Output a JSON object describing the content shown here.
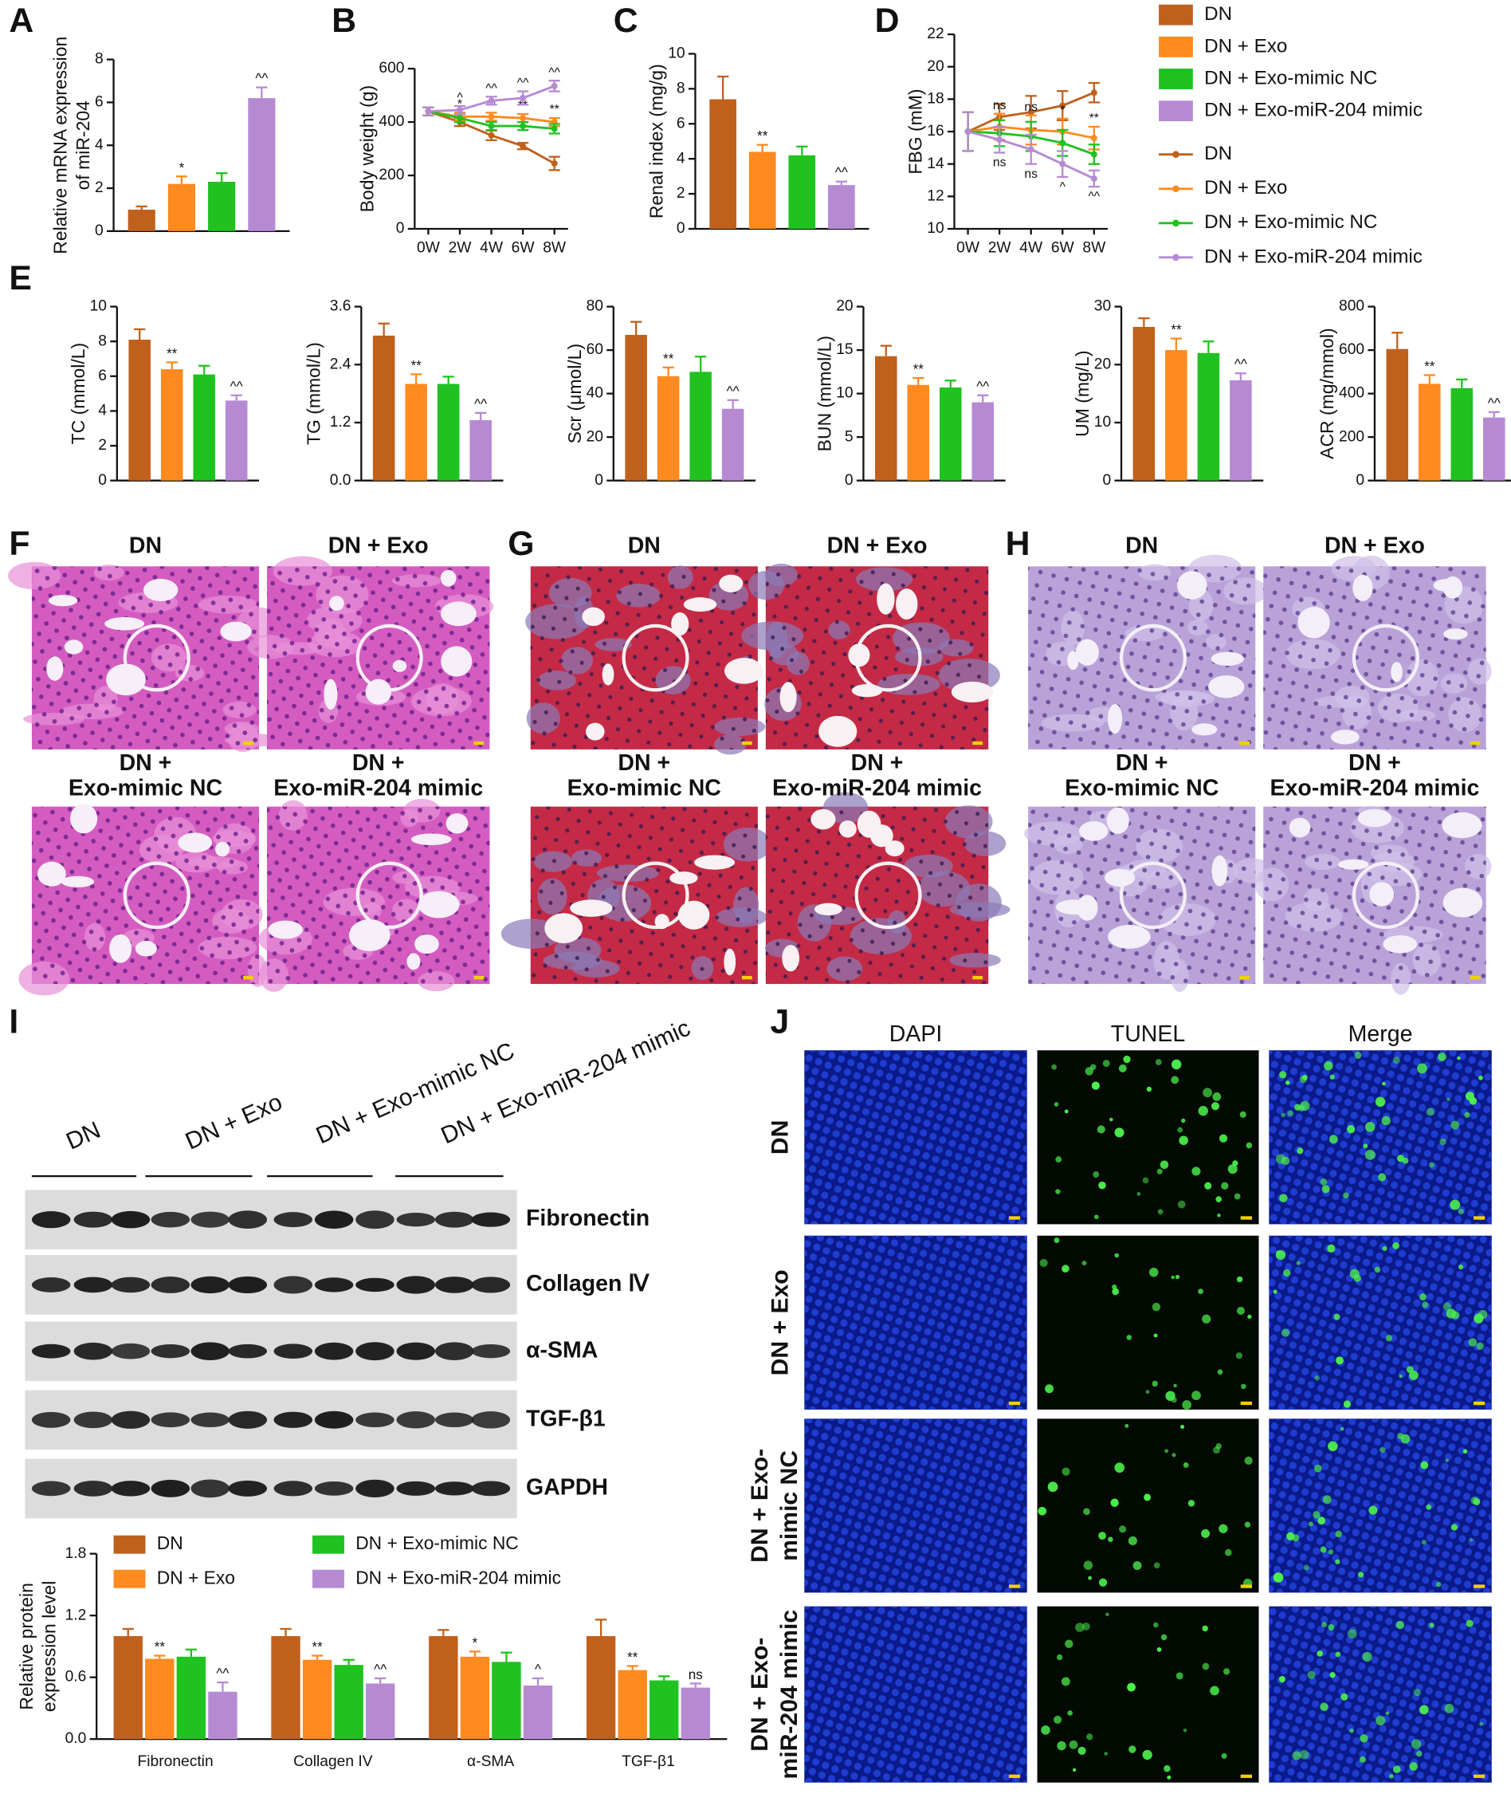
{
  "panel_letters": [
    "A",
    "B",
    "C",
    "D",
    "E",
    "F",
    "G",
    "H",
    "I",
    "J"
  ],
  "chart_data": [
    {
      "type": "bar",
      "ylabel": [
        "Relative mRNA expression",
        "of miR-204"
      ],
      "ylim": [
        0,
        8
      ],
      "yticks": [
        0,
        2,
        4,
        6,
        8
      ],
      "series": [
        {
          "name": "DN",
          "color": "#c0601d",
          "values": [
            1.0
          ],
          "errors": [
            0.15
          ],
          "annotations": [
            null
          ]
        },
        {
          "name": "DN + Exo",
          "color": "#ff8a1f",
          "values": [
            2.2
          ],
          "errors": [
            0.35
          ],
          "annotations": [
            "*"
          ]
        },
        {
          "name": "DN + Exo-mimic NC",
          "color": "#1fc21f",
          "values": [
            2.3
          ],
          "errors": [
            0.4
          ],
          "annotations": [
            null
          ]
        },
        {
          "name": "DN + Exo-miR-204 mimic",
          "color": "#b68ad3",
          "values": [
            6.2
          ],
          "errors": [
            0.5
          ],
          "annotations": [
            "^^"
          ]
        }
      ]
    },
    {
      "type": "line",
      "ylabel": [
        "Body weight (g)"
      ],
      "ylim": [
        0,
        600
      ],
      "yticks": [
        0,
        200,
        400,
        600
      ],
      "categories": [
        "0W",
        "2W",
        "4W",
        "6W",
        "8W"
      ],
      "series": [
        {
          "name": "DN",
          "color": "#c0601d",
          "values": [
            440,
            400,
            350,
            310,
            245
          ],
          "errors": [
            15,
            15,
            18,
            12,
            25
          ],
          "annotations": [
            null,
            null,
            null,
            null,
            null
          ]
        },
        {
          "name": "DN + Exo",
          "color": "#ff8a1f",
          "values": [
            440,
            420,
            420,
            415,
            400
          ],
          "errors": [
            15,
            15,
            15,
            15,
            15
          ],
          "annotations": [
            null,
            "*",
            "**",
            "**",
            "**"
          ]
        },
        {
          "name": "DN + Exo-mimic NC",
          "color": "#1fc21f",
          "values": [
            440,
            415,
            385,
            385,
            375
          ],
          "errors": [
            15,
            15,
            15,
            15,
            18
          ],
          "annotations": [
            null,
            null,
            null,
            null,
            null
          ]
        },
        {
          "name": "DN + Exo-miR-204 mimic",
          "color": "#b68ad3",
          "values": [
            440,
            445,
            480,
            490,
            535
          ],
          "errors": [
            15,
            15,
            15,
            25,
            20
          ],
          "annotations": [
            null,
            "^",
            "^^",
            "^^",
            "^^"
          ]
        }
      ]
    },
    {
      "type": "bar",
      "ylabel": [
        "Renal index (mg/g)"
      ],
      "ylim": [
        0,
        10
      ],
      "yticks": [
        0,
        2,
        4,
        6,
        8,
        10
      ],
      "series": [
        {
          "name": "DN",
          "color": "#c0601d",
          "values": [
            7.4
          ],
          "errors": [
            1.3
          ],
          "annotations": [
            null
          ]
        },
        {
          "name": "DN + Exo",
          "color": "#ff8a1f",
          "values": [
            4.4
          ],
          "errors": [
            0.4
          ],
          "annotations": [
            "**"
          ]
        },
        {
          "name": "DN + Exo-mimic NC",
          "color": "#1fc21f",
          "values": [
            4.2
          ],
          "errors": [
            0.5
          ],
          "annotations": [
            null
          ]
        },
        {
          "name": "DN + Exo-miR-204 mimic",
          "color": "#b68ad3",
          "values": [
            2.5
          ],
          "errors": [
            0.2
          ],
          "annotations": [
            "^^"
          ]
        }
      ]
    },
    {
      "type": "line",
      "ylabel": [
        "FBG (mM)"
      ],
      "ylim": [
        10,
        22
      ],
      "yticks": [
        10,
        12,
        14,
        16,
        18,
        20,
        22
      ],
      "categories": [
        "0W",
        "2W",
        "4W",
        "6W",
        "8W"
      ],
      "series": [
        {
          "name": "DN",
          "color": "#c0601d",
          "values": [
            16.0,
            16.9,
            17.2,
            17.6,
            18.4
          ],
          "errors": [
            1.2,
            0.8,
            1.0,
            0.9,
            0.6
          ],
          "annotations": [
            null,
            null,
            null,
            null,
            null
          ]
        },
        {
          "name": "DN + Exo",
          "color": "#ff8a1f",
          "values": [
            16.0,
            16.3,
            16.1,
            16.0,
            15.6
          ],
          "errors": [
            1.2,
            0.8,
            0.9,
            0.8,
            0.7
          ],
          "annotations": [
            null,
            "ns",
            "ns",
            "*",
            "**"
          ]
        },
        {
          "name": "DN + Exo-mimic NC",
          "color": "#1fc21f",
          "values": [
            16.0,
            15.9,
            15.7,
            15.3,
            14.6
          ],
          "errors": [
            1.2,
            0.8,
            0.9,
            0.8,
            0.6
          ],
          "annotations": [
            null,
            null,
            null,
            null,
            null
          ]
        },
        {
          "name": "DN + Exo-miR-204 mimic",
          "color": "#b68ad3",
          "values": [
            16.0,
            15.5,
            14.9,
            14.0,
            13.1
          ],
          "errors": [
            1.2,
            0.8,
            0.9,
            0.8,
            0.5
          ],
          "annotations": [
            null,
            "ns",
            "ns",
            "^",
            "^^"
          ]
        }
      ]
    },
    {
      "type": "bar",
      "ylabel": [
        "TC (mmol/L)"
      ],
      "ylim": [
        0,
        10
      ],
      "yticks": [
        0,
        2,
        4,
        6,
        8,
        10
      ],
      "series": [
        {
          "name": "DN",
          "color": "#c0601d",
          "values": [
            8.1
          ],
          "errors": [
            0.6
          ],
          "annotations": [
            null
          ]
        },
        {
          "name": "DN + Exo",
          "color": "#ff8a1f",
          "values": [
            6.4
          ],
          "errors": [
            0.4
          ],
          "annotations": [
            "**"
          ]
        },
        {
          "name": "DN + Exo-mimic NC",
          "color": "#1fc21f",
          "values": [
            6.1
          ],
          "errors": [
            0.5
          ],
          "annotations": [
            null
          ]
        },
        {
          "name": "DN + Exo-miR-204 mimic",
          "color": "#b68ad3",
          "values": [
            4.6
          ],
          "errors": [
            0.3
          ],
          "annotations": [
            "^^"
          ]
        }
      ]
    },
    {
      "type": "bar",
      "ylabel": [
        "TG (mmol/L)"
      ],
      "ylim": [
        0,
        3.6
      ],
      "yticks": [
        {
          "value": 0,
          "label": "0.0"
        },
        1.2,
        2.4,
        3.6
      ],
      "series": [
        {
          "name": "DN",
          "color": "#c0601d",
          "values": [
            3.0
          ],
          "errors": [
            0.25
          ],
          "annotations": [
            null
          ]
        },
        {
          "name": "DN + Exo",
          "color": "#ff8a1f",
          "values": [
            2.0
          ],
          "errors": [
            0.2
          ],
          "annotations": [
            "**"
          ]
        },
        {
          "name": "DN + Exo-mimic NC",
          "color": "#1fc21f",
          "values": [
            2.0
          ],
          "errors": [
            0.15
          ],
          "annotations": [
            null
          ]
        },
        {
          "name": "DN + Exo-miR-204 mimic",
          "color": "#b68ad3",
          "values": [
            1.25
          ],
          "errors": [
            0.15
          ],
          "annotations": [
            "^^"
          ]
        }
      ]
    },
    {
      "type": "bar",
      "ylabel": [
        "Scr (μmol/L)"
      ],
      "ylim": [
        0,
        80
      ],
      "yticks": [
        0,
        20,
        40,
        60,
        80
      ],
      "series": [
        {
          "name": "DN",
          "color": "#c0601d",
          "values": [
            67
          ],
          "errors": [
            6
          ],
          "annotations": [
            null
          ]
        },
        {
          "name": "DN + Exo",
          "color": "#ff8a1f",
          "values": [
            48
          ],
          "errors": [
            4
          ],
          "annotations": [
            "**"
          ]
        },
        {
          "name": "DN + Exo-mimic NC",
          "color": "#1fc21f",
          "values": [
            50
          ],
          "errors": [
            7
          ],
          "annotations": [
            null
          ]
        },
        {
          "name": "DN + Exo-miR-204 mimic",
          "color": "#b68ad3",
          "values": [
            33
          ],
          "errors": [
            4
          ],
          "annotations": [
            "^^"
          ]
        }
      ]
    },
    {
      "type": "bar",
      "ylabel": [
        "BUN (mmol/L)"
      ],
      "ylim": [
        0,
        20
      ],
      "yticks": [
        0,
        5,
        10,
        15,
        20
      ],
      "series": [
        {
          "name": "DN",
          "color": "#c0601d",
          "values": [
            14.3
          ],
          "errors": [
            1.2
          ],
          "annotations": [
            null
          ]
        },
        {
          "name": "DN + Exo",
          "color": "#ff8a1f",
          "values": [
            11
          ],
          "errors": [
            0.8
          ],
          "annotations": [
            "**"
          ]
        },
        {
          "name": "DN + Exo-mimic NC",
          "color": "#1fc21f",
          "values": [
            10.7
          ],
          "errors": [
            0.8
          ],
          "annotations": [
            null
          ]
        },
        {
          "name": "DN + Exo-miR-204 mimic",
          "color": "#b68ad3",
          "values": [
            9
          ],
          "errors": [
            0.8
          ],
          "annotations": [
            "^^"
          ]
        }
      ]
    },
    {
      "type": "bar",
      "ylabel": [
        "UM (mg/L)"
      ],
      "ylim": [
        0,
        30
      ],
      "yticks": [
        0,
        10,
        20,
        30
      ],
      "series": [
        {
          "name": "DN",
          "color": "#c0601d",
          "values": [
            26.5
          ],
          "errors": [
            1.5
          ],
          "annotations": [
            null
          ]
        },
        {
          "name": "DN + Exo",
          "color": "#ff8a1f",
          "values": [
            22.5
          ],
          "errors": [
            2
          ],
          "annotations": [
            "**"
          ]
        },
        {
          "name": "DN + Exo-mimic NC",
          "color": "#1fc21f",
          "values": [
            22
          ],
          "errors": [
            2
          ],
          "annotations": [
            null
          ]
        },
        {
          "name": "DN + Exo-miR-204 mimic",
          "color": "#b68ad3",
          "values": [
            17.3
          ],
          "errors": [
            1.2
          ],
          "annotations": [
            "^^"
          ]
        }
      ]
    },
    {
      "type": "bar",
      "ylabel": [
        "ACR (mg/mmol)"
      ],
      "ylim": [
        0,
        800
      ],
      "yticks": [
        0,
        200,
        400,
        600,
        800
      ],
      "series": [
        {
          "name": "DN",
          "color": "#c0601d",
          "values": [
            605
          ],
          "errors": [
            75
          ],
          "annotations": [
            null
          ]
        },
        {
          "name": "DN + Exo",
          "color": "#ff8a1f",
          "values": [
            445
          ],
          "errors": [
            40
          ],
          "annotations": [
            "**"
          ]
        },
        {
          "name": "DN + Exo-mimic NC",
          "color": "#1fc21f",
          "values": [
            425
          ],
          "errors": [
            40
          ],
          "annotations": [
            null
          ]
        },
        {
          "name": "DN + Exo-miR-204 mimic",
          "color": "#b68ad3",
          "values": [
            290
          ],
          "errors": [
            25
          ],
          "annotations": [
            "^^"
          ]
        }
      ]
    },
    {
      "type": "bar",
      "ylabel": [
        "Relative protein",
        "expression level"
      ],
      "ylim": [
        0,
        1.8
      ],
      "yticks": [
        {
          "value": 0,
          "label": "0.0"
        },
        0.6,
        1.2,
        1.8
      ],
      "categories": [
        "Fibronectin",
        "Collagen IV",
        "α-SMA",
        "TGF-β1"
      ],
      "series": [
        {
          "name": "DN",
          "color": "#c0601d",
          "values": [
            1.0,
            1.0,
            1.0,
            1.0
          ],
          "errors": [
            0.07,
            0.07,
            0.06,
            0.16
          ],
          "annotations": [
            null,
            null,
            null,
            null
          ]
        },
        {
          "name": "DN + Exo",
          "color": "#ff8a1f",
          "values": [
            0.78,
            0.77,
            0.8,
            0.67
          ],
          "errors": [
            0.03,
            0.04,
            0.05,
            0.04
          ],
          "annotations": [
            "**",
            "**",
            "*",
            "**"
          ]
        },
        {
          "name": "DN + Exo-mimic NC",
          "color": "#1fc21f",
          "values": [
            0.8,
            0.72,
            0.75,
            0.57
          ],
          "errors": [
            0.07,
            0.05,
            0.09,
            0.04
          ],
          "annotations": [
            null,
            null,
            null,
            null
          ]
        },
        {
          "name": "DN + Exo-miR-204 mimic",
          "color": "#b68ad3",
          "values": [
            0.46,
            0.54,
            0.52,
            0.5
          ],
          "errors": [
            0.09,
            0.05,
            0.07,
            0.04
          ],
          "annotations": [
            "^^",
            "^^",
            "^",
            "ns"
          ]
        }
      ]
    }
  ],
  "histology_labels": [
    [
      "DN"
    ],
    [
      "DN + Exo"
    ],
    [
      "DN +",
      "Exo-mimic NC"
    ],
    [
      "DN +",
      "Exo-miR-204 mimic"
    ]
  ],
  "blot": {
    "columns": [
      "DN",
      "DN + Exo",
      "DN + Exo-mimic NC",
      "DN + Exo-miR-204 mimic"
    ],
    "rows": [
      "Fibronectin",
      "Collagen Ⅳ",
      "α-SMA",
      "TGF-β1",
      "GAPDH"
    ]
  },
  "tunel": {
    "columns": [
      "DAPI",
      "TUNEL",
      "Merge"
    ],
    "rows": [
      [
        "DN"
      ],
      [
        "DN + Exo"
      ],
      [
        "DN + Exo-",
        "mimic NC"
      ],
      [
        "DN + Exo-",
        "miR-204 mimic"
      ]
    ]
  }
}
